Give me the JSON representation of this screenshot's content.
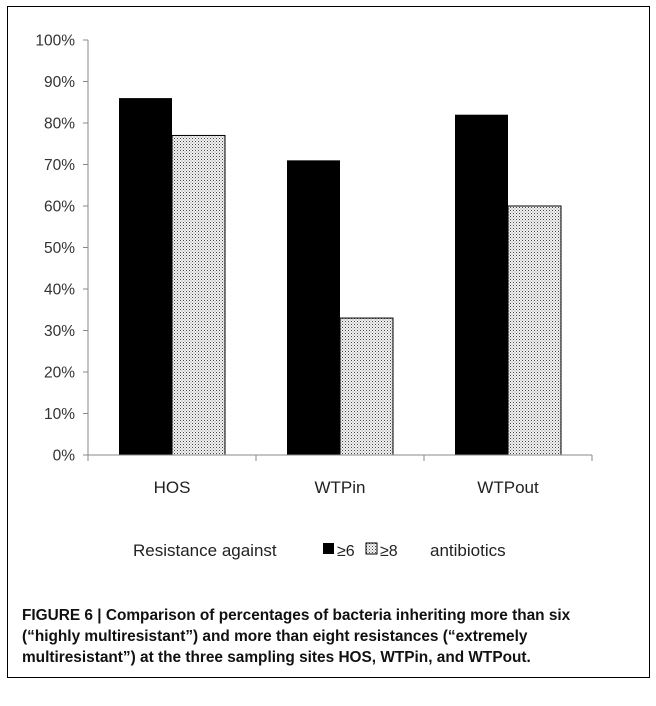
{
  "chart_data": {
    "type": "bar",
    "categories": [
      "HOS",
      "WTPin",
      "WTPout"
    ],
    "series": [
      {
        "name": "≥6",
        "values": [
          86,
          71,
          82
        ],
        "color": "#000000",
        "pattern": "solid"
      },
      {
        "name": "≥8",
        "values": [
          77,
          33,
          60
        ],
        "color": "#d9d9d9",
        "pattern": "dotted"
      }
    ],
    "ylim": [
      0,
      100
    ],
    "yticks": [
      "0%",
      "10%",
      "20%",
      "30%",
      "40%",
      "50%",
      "60%",
      "70%",
      "80%",
      "90%",
      "100%"
    ],
    "legend": {
      "prefix": "Resistance against",
      "suffix": "antibiotics",
      "placement": "bottom"
    }
  },
  "caption": {
    "label": "FIGURE 6 | ",
    "text": "Comparison of percentages of bacteria inheriting more than six (“highly multiresistant”) and more than eight resistances (“extremely multiresistant”) at the three sampling sites HOS, WTPin, and WTPout."
  }
}
